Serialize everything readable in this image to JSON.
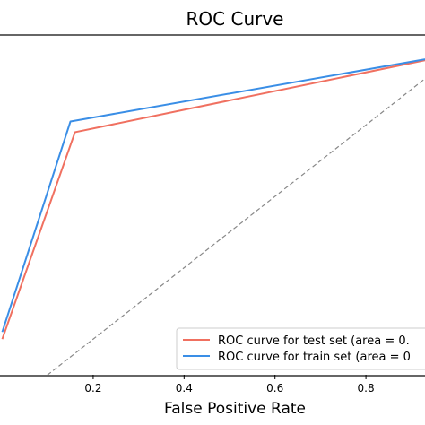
{
  "chart_data": {
    "type": "line",
    "title": "ROC Curve",
    "xlabel": "False Positive Rate",
    "ylabel": "",
    "xlim": [
      -0.005,
      0.93
    ],
    "ylim": [
      0.1,
      1.05
    ],
    "x_ticks": [
      {
        "value": 0.2,
        "label": "0.2"
      },
      {
        "value": 0.4,
        "label": "0.4"
      },
      {
        "value": 0.6,
        "label": "0.6"
      },
      {
        "value": 0.8,
        "label": "0.8"
      }
    ],
    "series": [
      {
        "name": "ROC curve for test set (area = 0.",
        "color": "#f07060",
        "x": [
          0.0,
          0.16,
          1.0
        ],
        "y": [
          0.2,
          0.78,
          1.0
        ]
      },
      {
        "name": "ROC curve for train set (area = 0",
        "color": "#3a8ee6",
        "x": [
          0.0,
          0.15,
          1.0
        ],
        "y": [
          0.22,
          0.81,
          1.0
        ]
      }
    ],
    "diagonal": {
      "x": [
        0.0,
        1.0
      ],
      "y": [
        0.0,
        1.0
      ],
      "color": "#888888",
      "style": "dashed"
    },
    "legend_position": "bottom-right",
    "grid": false
  }
}
